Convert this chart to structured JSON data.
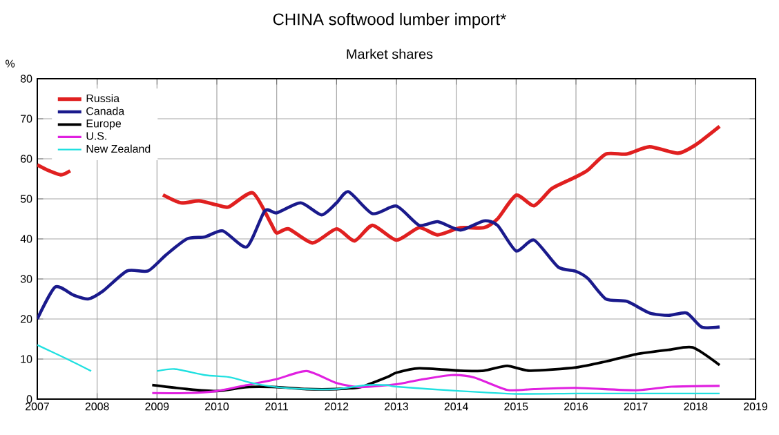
{
  "chart_data": {
    "type": "line",
    "title": "CHINA softwood lumber import*",
    "subtitle": "Market shares",
    "ylabel": "%",
    "xlim": [
      2007,
      2019
    ],
    "xticks": [
      2007,
      2008,
      2009,
      2010,
      2011,
      2012,
      2013,
      2014,
      2015,
      2016,
      2017,
      2018,
      2019
    ],
    "ylim": [
      0,
      80
    ],
    "yticks": [
      0,
      10,
      20,
      30,
      40,
      50,
      60,
      70,
      80
    ],
    "grid": true,
    "legend": "top left",
    "series": [
      {
        "name": "Russia",
        "color": "#e02020",
        "x": [
          2007.0,
          2007.2,
          2007.4,
          2007.55,
          2008.3,
          2009.1,
          2009.4,
          2009.7,
          2010.0,
          2010.2,
          2010.6,
          2010.9,
          2011.0,
          2011.2,
          2011.6,
          2012.0,
          2012.3,
          2012.6,
          2013.0,
          2013.38,
          2013.69,
          2014.07,
          2014.46,
          2014.69,
          2015.0,
          2015.3,
          2015.6,
          2016.0,
          2016.2,
          2016.5,
          2016.85,
          2017.23,
          2017.7,
          2018.0,
          2018.4
        ],
        "values": [
          58.5,
          57,
          56,
          57,
          null,
          51,
          49,
          49.5,
          48.5,
          48,
          51.5,
          44,
          41.5,
          42.5,
          39,
          42.5,
          39.5,
          43.4,
          39.7,
          42.8,
          41,
          42.8,
          42.8,
          45,
          50.9,
          48.3,
          52.6,
          55.5,
          57.2,
          61.2,
          61.2,
          63,
          61.4,
          63.5,
          68.1
        ]
      },
      {
        "name": "Canada",
        "color": "#1a1a8c",
        "x": [
          2007.0,
          2007.3,
          2007.6,
          2007.85,
          2008.1,
          2008.5,
          2008.85,
          2009.15,
          2009.5,
          2009.8,
          2010.1,
          2010.5,
          2010.8,
          2011.0,
          2011.4,
          2011.75,
          2012.0,
          2012.2,
          2012.6,
          2013.0,
          2013.38,
          2013.69,
          2014.07,
          2014.46,
          2014.69,
          2015.0,
          2015.3,
          2015.7,
          2016.0,
          2016.2,
          2016.5,
          2016.85,
          2017.23,
          2017.55,
          2017.85,
          2018.1,
          2018.4
        ],
        "values": [
          20,
          28,
          26,
          25,
          27,
          32,
          32,
          36,
          40,
          40.5,
          42,
          38,
          47,
          46.5,
          49,
          46,
          49,
          51.8,
          46.3,
          48.2,
          43.4,
          44.3,
          42.2,
          44.5,
          43.4,
          37,
          39.7,
          33,
          31.9,
          30.1,
          25,
          24.4,
          21.5,
          20.9,
          21.5,
          18,
          18
        ]
      },
      {
        "name": "Europe",
        "color": "#000000",
        "x": [
          2008.92,
          2009.5,
          2010.0,
          2010.5,
          2011.0,
          2011.5,
          2012.0,
          2012.4,
          2012.85,
          2013.0,
          2013.38,
          2014.07,
          2014.46,
          2014.85,
          2015.23,
          2016.0,
          2016.5,
          2017.0,
          2017.55,
          2017.95,
          2018.4
        ],
        "values": [
          3.5,
          2.5,
          2,
          3,
          3,
          2.5,
          2.5,
          3,
          5.5,
          6.6,
          7.7,
          7.1,
          7.1,
          8.3,
          7.1,
          7.9,
          9.4,
          11.2,
          12.3,
          12.9,
          8.5
        ]
      },
      {
        "name": "U.S.",
        "color": "#e020e0",
        "x": [
          2008.92,
          2009.5,
          2010.0,
          2010.5,
          2011.0,
          2011.5,
          2012.0,
          2012.4,
          2013.0,
          2013.38,
          2013.92,
          2014.3,
          2014.85,
          2015.3,
          2016.0,
          2017.0,
          2017.6,
          2018.4
        ],
        "values": [
          1.5,
          1.5,
          2,
          3.5,
          5,
          7,
          4,
          3,
          3.7,
          4.8,
          6,
          5.4,
          2.3,
          2.5,
          2.8,
          2.2,
          3.1,
          3.3
        ]
      },
      {
        "name": "New Zealand",
        "color": "#20e0e0",
        "x": [
          2007.0,
          2007.5,
          2007.9,
          2008.5,
          2009.0,
          2009.3,
          2009.8,
          2010.2,
          2010.6,
          2011.0,
          2011.5,
          2012.0,
          2012.5,
          2012.85,
          2013.0,
          2014.07,
          2015.0,
          2016.0,
          2017.0,
          2017.6,
          2018.4
        ],
        "values": [
          13.5,
          10,
          7,
          null,
          7,
          7.5,
          6,
          5.5,
          4,
          3,
          2.5,
          2.5,
          3.5,
          3.5,
          3.1,
          2,
          1.3,
          1.4,
          1.4,
          1.4,
          1.4
        ]
      }
    ]
  }
}
